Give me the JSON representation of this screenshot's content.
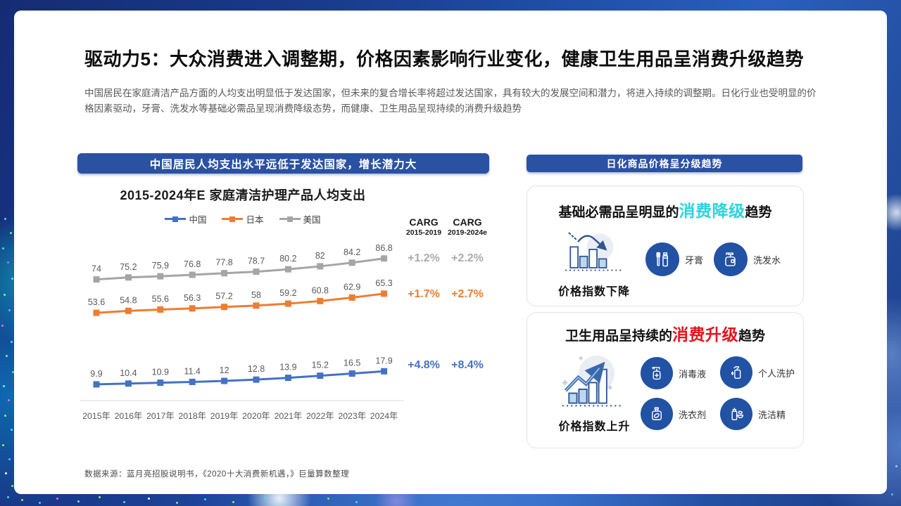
{
  "slide": {
    "title": "驱动力5：大众消费进入调整期，价格因素影响行业变化，健康卫生用品呈消费升级趋势",
    "subtitle": "中国居民在家庭清洁产品方面的人均支出明显低于发达国家，但未来的复合增长率将超过发达国家，具有较大的发展空间和潜力，将进入持续的调整期。日化行业也受明显的价格因素驱动，牙膏、洗发水等基础必需品呈现消费降级态势，而健康、卫生用品呈现持续的消费升级趋势",
    "source": "数据来源：蓝月亮招股说明书，《2020十大消费新机遇，》巨量算数整理"
  },
  "left_section": {
    "banner": "中国居民人均支出水平远低于发达国家，增长潜力大"
  },
  "chart_data": {
    "type": "line",
    "title": "2015-2024年E 家庭清洁护理产品人均支出",
    "categories": [
      "2015年",
      "2016年",
      "2017年",
      "2018年",
      "2019年",
      "2020年",
      "2021年",
      "2022年",
      "2023年",
      "2024年"
    ],
    "series": [
      {
        "name": "中国",
        "color": "#4472C4",
        "values": [
          9.9,
          10.4,
          10.9,
          11.4,
          12,
          12.8,
          13.9,
          15.2,
          16.5,
          17.9
        ]
      },
      {
        "name": "日本",
        "color": "#ED7D31",
        "values": [
          53.6,
          54.8,
          55.6,
          56.3,
          57.2,
          58,
          59.2,
          60.8,
          62.9,
          65.3
        ]
      },
      {
        "name": "美国",
        "color": "#A5A5A5",
        "values": [
          74,
          75.2,
          75.9,
          76.8,
          77.8,
          78.7,
          80.2,
          82,
          84.2,
          86.8
        ]
      }
    ],
    "ylim": [
      0,
      95
    ],
    "grid": "baseline-only",
    "legend_position": "top",
    "value_labels": true,
    "carg": {
      "col1_header": "CARG",
      "col1_range": "2015-2019",
      "col2_header": "CARG",
      "col2_range": "2019-2024e",
      "rows": [
        {
          "series": "美国",
          "v1": "+1.2%",
          "v2": "+2.2%",
          "color": "#ABABAB"
        },
        {
          "series": "日本",
          "v1": "+1.7%",
          "v2": "+2.7%",
          "color": "#ED7D31"
        },
        {
          "series": "中国",
          "v1": "+4.8%",
          "v2": "+8.4%",
          "color": "#4472C4"
        }
      ]
    }
  },
  "right_section": {
    "banner": "日化商品价格呈分级趋势",
    "cards": [
      {
        "title_prefix": "基础必需品呈明显的",
        "title_highlight": "消费降级",
        "title_suffix": "趋势",
        "highlight_color": "#2BD3DB",
        "index_label": "价格指数下降",
        "items": [
          {
            "label": "牙膏",
            "icon": "toothpaste-icon"
          },
          {
            "label": "洗发水",
            "icon": "shampoo-icon"
          }
        ]
      },
      {
        "title_prefix": "卫生用品呈持续的",
        "title_highlight": "消费升级",
        "title_suffix": "趋势",
        "highlight_color": "#E8111C",
        "index_label": "价格指数上升",
        "items": [
          {
            "label": "消毒液",
            "icon": "disinfectant-icon"
          },
          {
            "label": "个人洗护",
            "icon": "personal-care-icon"
          },
          {
            "label": "洗衣剂",
            "icon": "laundry-detergent-icon"
          },
          {
            "label": "洗洁精",
            "icon": "dish-soap-icon"
          }
        ]
      }
    ]
  },
  "colors": {
    "banner_blue": "#2B51A3",
    "icon_circle_blue": "#2152A3",
    "chart_blue": "#4472C4",
    "chart_orange": "#ED7D31",
    "chart_gray": "#A5A5A5",
    "highlight_cyan": "#2BD3DB",
    "highlight_red": "#E8111C"
  }
}
